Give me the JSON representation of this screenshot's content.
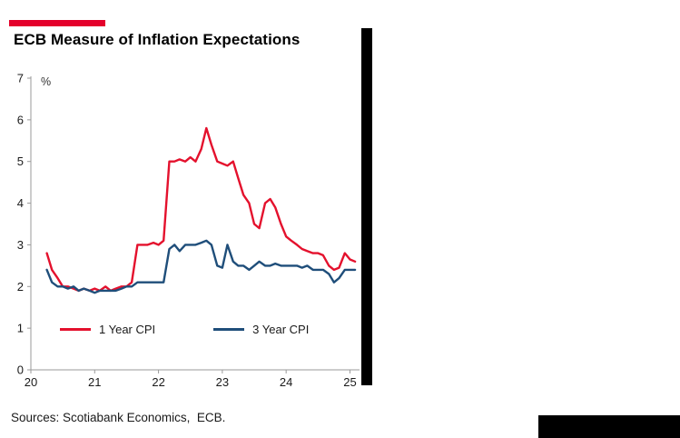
{
  "header": {
    "title": "ECB Measure of Inflation Expectations",
    "accent_color": "#e4002b"
  },
  "footer": {
    "sources": "Sources: Scotiabank Economics,  ECB."
  },
  "decor": {
    "divider_color": "#000000"
  },
  "chart_data": {
    "type": "line",
    "title": "ECB Measure of Inflation Expectations",
    "xlabel": "",
    "ylabel": "%",
    "ylim": [
      0,
      7
    ],
    "xlim": [
      20,
      25.15
    ],
    "y_ticks": [
      0,
      1,
      2,
      3,
      4,
      5,
      6,
      7
    ],
    "x_ticks": [
      20,
      21,
      22,
      23,
      24,
      25
    ],
    "grid": false,
    "legend_position": "inside-bottom",
    "axis_color": "#9a9a9a",
    "series": [
      {
        "name": "1 Year CPI",
        "color": "#e4112d",
        "x": [
          20.25,
          20.33,
          20.42,
          20.5,
          20.58,
          20.67,
          20.75,
          20.83,
          20.92,
          21.0,
          21.08,
          21.17,
          21.25,
          21.33,
          21.42,
          21.5,
          21.58,
          21.67,
          21.75,
          21.83,
          21.92,
          22.0,
          22.08,
          22.17,
          22.25,
          22.33,
          22.42,
          22.5,
          22.58,
          22.67,
          22.75,
          22.83,
          22.92,
          23.0,
          23.08,
          23.17,
          23.25,
          23.33,
          23.42,
          23.5,
          23.58,
          23.67,
          23.75,
          23.83,
          23.92,
          24.0,
          24.08,
          24.17,
          24.25,
          24.33,
          24.42,
          24.5,
          24.58,
          24.67,
          24.75,
          24.83,
          24.92,
          25.0,
          25.08
        ],
        "values": [
          2.8,
          2.4,
          2.2,
          2.0,
          2.0,
          1.95,
          1.9,
          1.95,
          1.9,
          1.95,
          1.9,
          2.0,
          1.9,
          1.95,
          2.0,
          2.0,
          2.1,
          3.0,
          3.0,
          3.0,
          3.05,
          3.0,
          3.1,
          5.0,
          5.0,
          5.05,
          5.0,
          5.1,
          5.0,
          5.3,
          5.8,
          5.4,
          5.0,
          4.95,
          4.9,
          5.0,
          4.6,
          4.2,
          4.0,
          3.5,
          3.4,
          4.0,
          4.1,
          3.9,
          3.5,
          3.2,
          3.1,
          3.0,
          2.9,
          2.85,
          2.8,
          2.8,
          2.75,
          2.5,
          2.4,
          2.45,
          2.8,
          2.65,
          2.6
        ]
      },
      {
        "name": "3 Year CPI",
        "color": "#1f4e7a",
        "x": [
          20.25,
          20.33,
          20.42,
          20.5,
          20.58,
          20.67,
          20.75,
          20.83,
          20.92,
          21.0,
          21.08,
          21.17,
          21.25,
          21.33,
          21.42,
          21.5,
          21.58,
          21.67,
          21.75,
          21.83,
          21.92,
          22.0,
          22.08,
          22.17,
          22.25,
          22.33,
          22.42,
          22.5,
          22.58,
          22.67,
          22.75,
          22.83,
          22.92,
          23.0,
          23.08,
          23.17,
          23.25,
          23.33,
          23.42,
          23.5,
          23.58,
          23.67,
          23.75,
          23.83,
          23.92,
          24.0,
          24.08,
          24.17,
          24.25,
          24.33,
          24.42,
          24.5,
          24.58,
          24.67,
          24.75,
          24.83,
          24.92,
          25.0,
          25.08
        ],
        "values": [
          2.4,
          2.1,
          2.0,
          2.0,
          1.95,
          2.0,
          1.9,
          1.95,
          1.9,
          1.85,
          1.9,
          1.9,
          1.9,
          1.9,
          1.95,
          2.0,
          2.0,
          2.1,
          2.1,
          2.1,
          2.1,
          2.1,
          2.1,
          2.9,
          3.0,
          2.85,
          3.0,
          3.0,
          3.0,
          3.05,
          3.1,
          3.0,
          2.5,
          2.45,
          3.0,
          2.6,
          2.5,
          2.5,
          2.4,
          2.5,
          2.6,
          2.5,
          2.5,
          2.55,
          2.5,
          2.5,
          2.5,
          2.5,
          2.45,
          2.5,
          2.4,
          2.4,
          2.4,
          2.3,
          2.1,
          2.2,
          2.4,
          2.4,
          2.4
        ]
      }
    ]
  }
}
